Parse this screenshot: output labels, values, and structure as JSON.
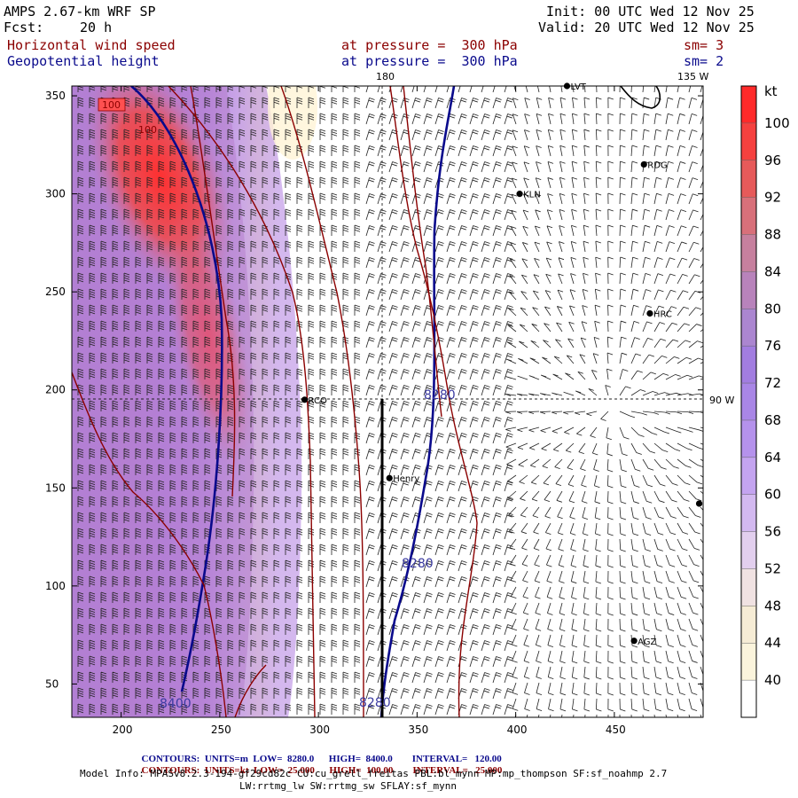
{
  "header": {
    "model": "AMPS 2.67-km WRF SP",
    "fcst_label": "Fcst:",
    "fcst_value": "20 h",
    "init": "Init: 00 UTC Wed 12 Nov 25",
    "valid": "Valid: 20 UTC Wed 12 Nov 25",
    "field1": "Horizontal wind speed",
    "field1_level": "at pressure =  300 hPa",
    "field1_sm": "sm= 3",
    "field2": "Geopotential height",
    "field2_level": "at pressure =  300 hPa",
    "field2_sm": "sm= 2"
  },
  "map": {
    "meridian_top": "180",
    "meridian_top_right": "135 W",
    "meridian_right": "90 W",
    "x_ticks": [
      "200",
      "250",
      "300",
      "350",
      "400",
      "450"
    ],
    "y_ticks": [
      "350",
      "300",
      "250",
      "200",
      "150",
      "100",
      "50"
    ],
    "x_range": [
      175,
      495
    ],
    "y_range": [
      33,
      355
    ],
    "stations": [
      {
        "name": "LVT",
        "x": 426,
        "y": 355
      },
      {
        "name": "RDG",
        "x": 465,
        "y": 315
      },
      {
        "name": "KLN",
        "x": 402,
        "y": 300
      },
      {
        "name": "HRC",
        "x": 468,
        "y": 239
      },
      {
        "name": "RCO",
        "x": 293,
        "y": 195
      },
      {
        "name": "Henry",
        "x": 336,
        "y": 155
      },
      {
        "name": "",
        "x": 493,
        "y": 142
      },
      {
        "name": "AGZ",
        "x": 460,
        "y": 72
      }
    ],
    "height_contour_labels": [
      "8280",
      "8280",
      "8280",
      "8400"
    ],
    "speed_contour_labels": [
      "100",
      "100"
    ]
  },
  "colorbar": {
    "unit": "kt",
    "labels": [
      "100",
      "96",
      "92",
      "88",
      "84",
      "80",
      "76",
      "72",
      "68",
      "64",
      "60",
      "56",
      "52",
      "48",
      "44",
      "40"
    ],
    "colors": [
      "#ff2a2a",
      "#f5413f",
      "#e65a5a",
      "#d8707a",
      "#c6809e",
      "#b883bb",
      "#ab86d0",
      "#a27de0",
      "#a986e6",
      "#b592ec",
      "#c4a4f0",
      "#d3b9f0",
      "#e2cfee",
      "#f0e2e2",
      "#f6ecd5",
      "#fbf4dc",
      "#ffffff"
    ]
  },
  "footer": {
    "line1_label": "CONTOURS:",
    "line1_units": "UNITS=m",
    "line1_low": "LOW=",
    "line1_low_val": "8280.0",
    "line1_high": "HIGH=",
    "line1_high_val": "8400.0",
    "line1_int": "INTERVAL=",
    "line1_int_val": "120.00",
    "line2_label": "CONTOURS:",
    "line2_units": "UNITS=kt",
    "line2_low": "LOW=",
    "line2_low_val": "25.000",
    "line2_high": "HIGH=",
    "line2_high_val": "100.00",
    "line2_int": "INTERVAL=",
    "line2_int_val": "25.000",
    "model_info": "Model Info: MPASv8.2.3-194-gf29cd82c CU:cu_grell_freitas PBL:bl_mynn MP:mp_thompson SF:sf_noahmp 2.7",
    "model_info2": "LW:rrtmg_lw SW:rrtmg_sw SFLAY:sf_mynn"
  },
  "colors": {
    "height_contour": "#0a0a8c",
    "speed_contour": "#8b0000"
  }
}
